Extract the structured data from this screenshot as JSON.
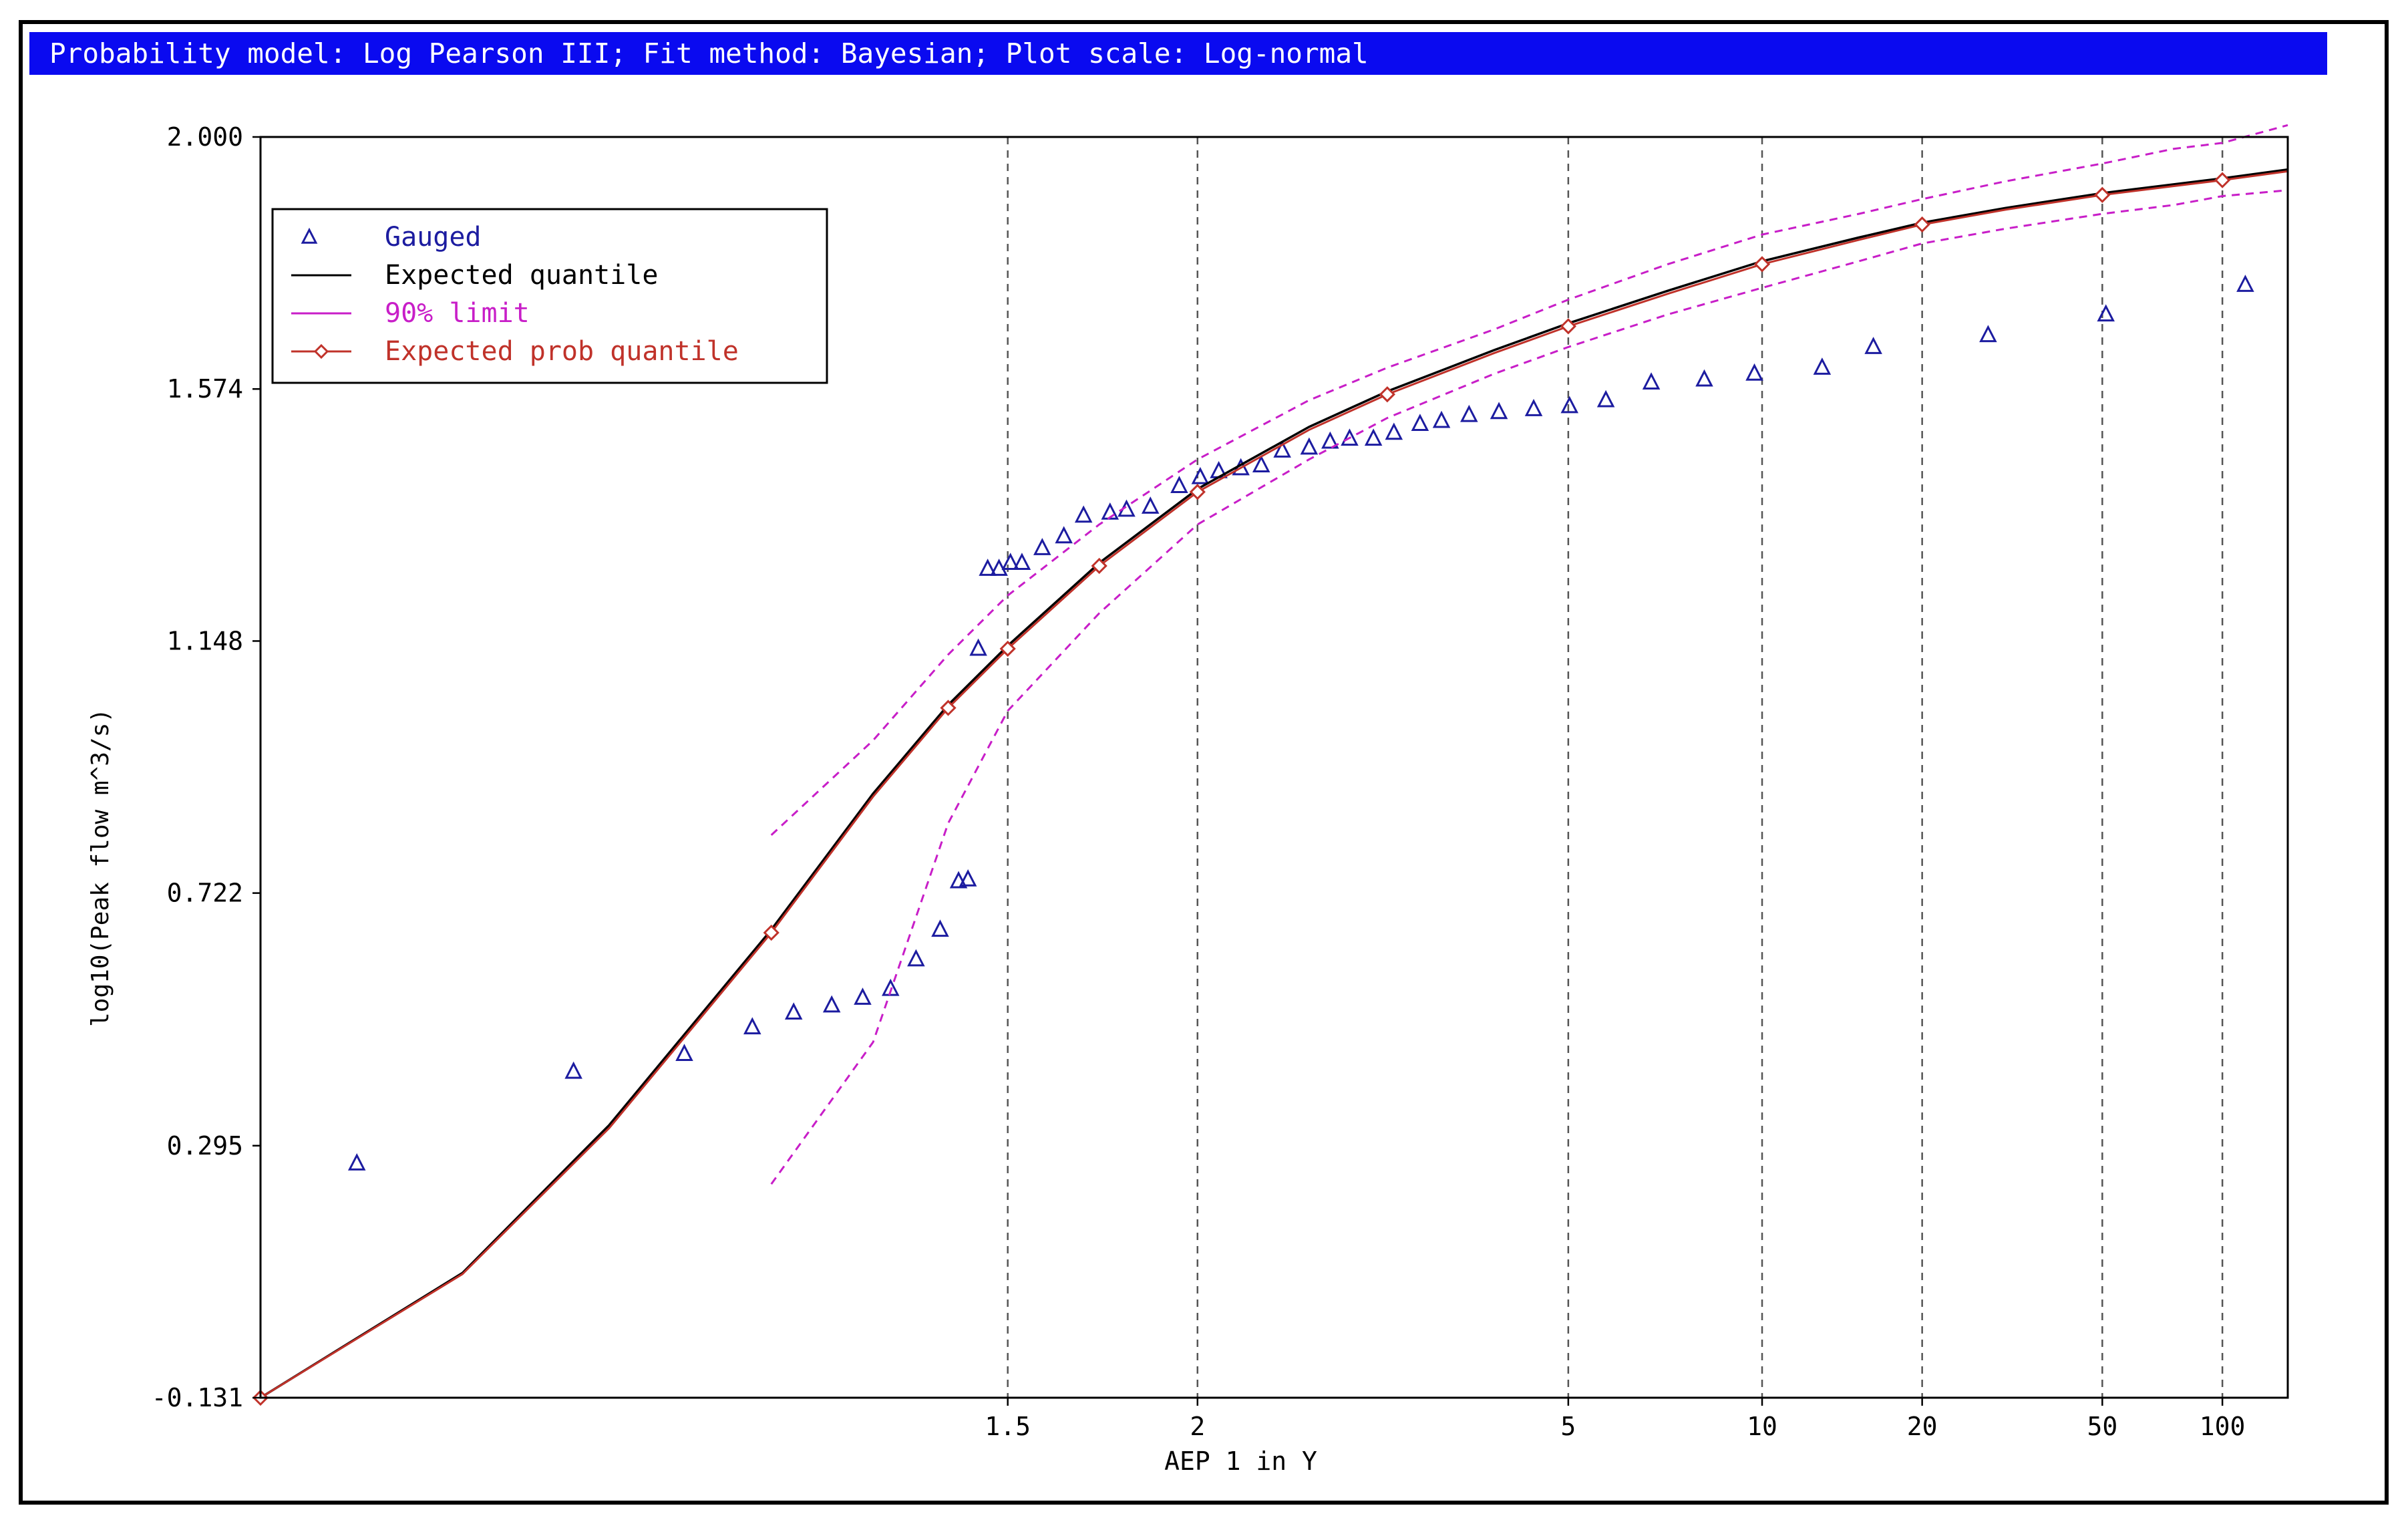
{
  "title": "Probability model: Log Pearson III; Fit method: Bayesian; Plot scale: Log-normal",
  "colors": {
    "title_bar": "#0a0af0",
    "gauged": "#1c1ca0",
    "expected": "#000000",
    "limit": "#c81ec8",
    "expected_prob": "#c0322a",
    "grid": "#555555"
  },
  "chart_data": {
    "type": "scatter",
    "xlabel": "AEP 1 in Y",
    "ylabel": "log10(Peak flow m^3/s)",
    "x_scale": "log-normal (AEP 1 in Y)",
    "xlim": [
      1.017,
      150
    ],
    "ylim": [
      -0.131,
      2.0
    ],
    "x_ticks": [
      {
        "value": 1.5,
        "label": "1.5"
      },
      {
        "value": 2,
        "label": "2"
      },
      {
        "value": 5,
        "label": "5"
      },
      {
        "value": 10,
        "label": "10"
      },
      {
        "value": 20,
        "label": "20"
      },
      {
        "value": 50,
        "label": "50"
      },
      {
        "value": 100,
        "label": "100"
      }
    ],
    "y_ticks": [
      "2.000",
      "1.574",
      "1.148",
      "0.722",
      "0.295",
      "-0.131"
    ],
    "grid": "vertical dashed lines at x ticks",
    "legend_position": "top-left",
    "legend": [
      {
        "label": "Gauged",
        "style": "triangle"
      },
      {
        "label": "Expected quantile",
        "style": "line"
      },
      {
        "label": "90% limit",
        "style": "line"
      },
      {
        "label": "Expected prob quantile",
        "style": "line-diamond"
      }
    ],
    "series": [
      {
        "name": "Gauged",
        "type": "scatter",
        "x": [
          1.029,
          1.085,
          1.139,
          1.185,
          1.219,
          1.255,
          1.288,
          1.321,
          1.354,
          1.388,
          1.416,
          1.431,
          1.448,
          1.464,
          1.484,
          1.505,
          1.527,
          1.568,
          1.615,
          1.661,
          1.728,
          1.773,
          1.843,
          1.936,
          2.01,
          2.08,
          2.17,
          2.26,
          2.36,
          2.5,
          2.62,
          2.74,
          2.9,
          3.05,
          3.26,
          3.45,
          3.72,
          4.05,
          4.49,
          5.02,
          5.65,
          6.6,
          8.0,
          9.7,
          12.8,
          16.0,
          27.5,
          51.0,
          115.0
        ],
        "y": [
          0.265,
          0.42,
          0.45,
          0.495,
          0.52,
          0.532,
          0.545,
          0.56,
          0.61,
          0.66,
          0.742,
          0.745,
          1.135,
          1.27,
          1.27,
          1.28,
          1.28,
          1.305,
          1.325,
          1.36,
          1.365,
          1.37,
          1.375,
          1.41,
          1.425,
          1.435,
          1.44,
          1.445,
          1.47,
          1.475,
          1.485,
          1.49,
          1.49,
          1.5,
          1.515,
          1.52,
          1.53,
          1.535,
          1.54,
          1.545,
          1.555,
          1.585,
          1.59,
          1.6,
          1.61,
          1.645,
          1.665,
          1.7,
          1.75
        ]
      },
      {
        "name": "Expected quantile",
        "type": "line",
        "x": [
          1.017,
          1.05,
          1.1,
          1.2,
          1.3,
          1.4,
          1.5,
          1.7,
          2.0,
          2.5,
          3.0,
          4.0,
          5.0,
          7.0,
          10,
          15,
          20,
          30,
          50,
          75,
          100,
          150
        ],
        "y": [
          -0.131,
          0.08,
          0.33,
          0.66,
          0.89,
          1.04,
          1.14,
          1.28,
          1.405,
          1.51,
          1.57,
          1.64,
          1.685,
          1.74,
          1.79,
          1.83,
          1.855,
          1.88,
          1.905,
          1.92,
          1.93,
          1.945
        ]
      },
      {
        "name": "90% limit",
        "type": "line",
        "x": [
          1.2,
          1.3,
          1.4,
          1.5,
          1.7,
          2.0,
          2.5,
          3.0,
          4.0,
          5.0,
          7.0,
          10,
          15,
          20,
          30,
          50,
          75,
          100,
          150
        ],
        "y": [
          0.82,
          0.98,
          1.125,
          1.225,
          1.345,
          1.455,
          1.555,
          1.61,
          1.675,
          1.725,
          1.785,
          1.835,
          1.87,
          1.895,
          1.925,
          1.955,
          1.98,
          1.99,
          2.02
        ]
      },
      {
        "name": "90% limit",
        "type": "line",
        "x": [
          1.2,
          1.3,
          1.4,
          1.5,
          1.7,
          2.0,
          2.5,
          3.0,
          4.0,
          5.0,
          7.0,
          10,
          15,
          20,
          30,
          50,
          75,
          100,
          150
        ],
        "y": [
          0.23,
          0.47,
          0.84,
          1.03,
          1.195,
          1.345,
          1.455,
          1.525,
          1.6,
          1.645,
          1.7,
          1.745,
          1.79,
          1.82,
          1.845,
          1.87,
          1.885,
          1.9,
          1.91
        ]
      },
      {
        "name": "Expected prob quantile",
        "type": "line",
        "x": [
          1.017,
          1.05,
          1.1,
          1.2,
          1.3,
          1.4,
          1.5,
          1.7,
          2.0,
          2.5,
          3.0,
          4.0,
          5.0,
          7.0,
          10,
          15,
          20,
          30,
          50,
          75,
          100,
          150
        ],
        "y": [
          -0.131,
          0.078,
          0.325,
          0.655,
          0.885,
          1.035,
          1.135,
          1.275,
          1.4,
          1.505,
          1.565,
          1.635,
          1.68,
          1.735,
          1.785,
          1.826,
          1.852,
          1.877,
          1.902,
          1.917,
          1.927,
          1.942
        ],
        "markers_x": [
          1.017,
          1.2,
          1.4,
          1.5,
          1.7,
          2.0,
          3.0,
          5.0,
          10,
          20,
          50,
          100
        ],
        "markers_y": [
          -0.131,
          0.655,
          1.035,
          1.135,
          1.275,
          1.4,
          1.565,
          1.68,
          1.785,
          1.852,
          1.902,
          1.927
        ]
      }
    ]
  }
}
